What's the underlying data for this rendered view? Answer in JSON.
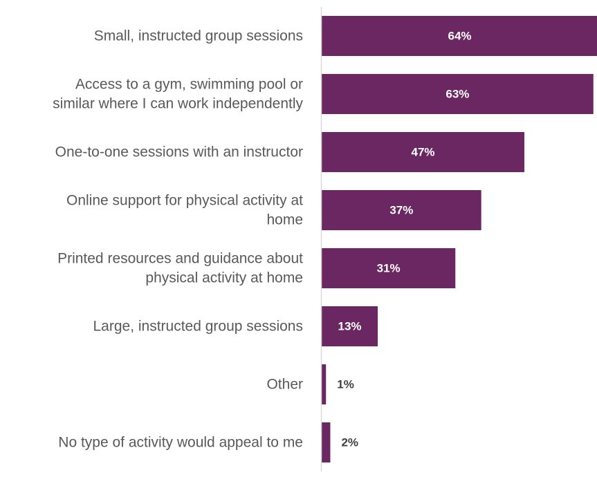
{
  "chart_data": {
    "type": "bar",
    "orientation": "horizontal",
    "categories": [
      [
        "Small, instructed group sessions"
      ],
      [
        "Access to a gym, swimming pool or",
        "similar where I can work independently"
      ],
      [
        "One-to-one sessions with an instructor"
      ],
      [
        "Online support for physical activity at",
        "home"
      ],
      [
        "Printed resources and guidance about",
        "physical activity at home"
      ],
      [
        "Large, instructed group sessions"
      ],
      [
        "Other"
      ],
      [
        "No type of activity would appeal to me"
      ]
    ],
    "values": [
      64,
      63,
      47,
      37,
      31,
      13,
      1,
      2
    ],
    "value_labels": [
      "64%",
      "63%",
      "47%",
      "37%",
      "31%",
      "13%",
      "1%",
      "2%"
    ],
    "unit": "%",
    "xlim": [
      0,
      64
    ],
    "grid": false,
    "legend": "none",
    "colors": {
      "bar": "#6b2761",
      "label_inside": "#ffffff",
      "label_outside": "#404040",
      "category_text": "#595959",
      "axis": "#d9d9d9"
    }
  }
}
